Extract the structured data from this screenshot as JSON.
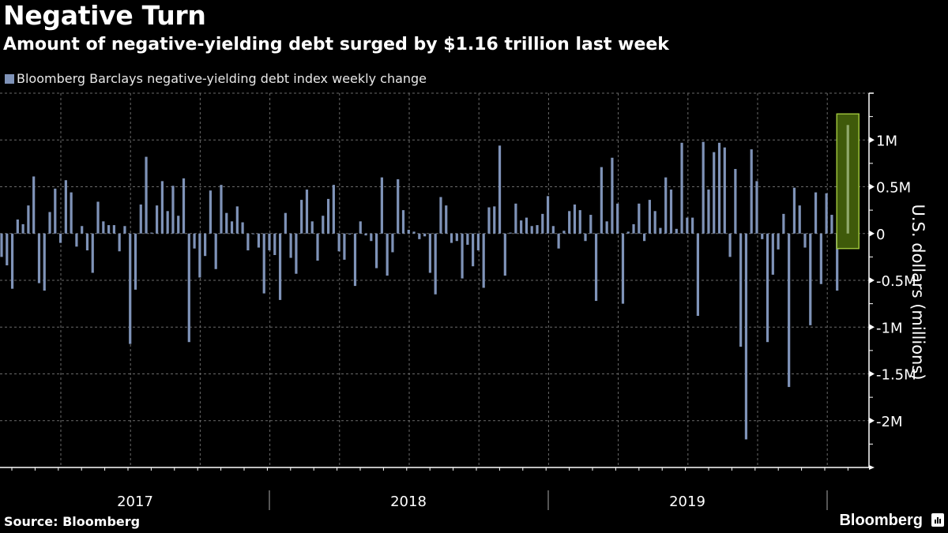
{
  "header": {
    "title": "Negative Turn",
    "subtitle": "Amount of negative-yielding debt surged by $1.16 trillion last week"
  },
  "footer": {
    "source": "Source: Bloomberg",
    "brand": "Bloomberg",
    "brand_icon": "bloomberg-chart-icon"
  },
  "colors": {
    "background": "#000000",
    "bar": "#7f93b8",
    "highlight_fill": "#3f5a0a",
    "highlight_stroke": "#9bc13a",
    "highlight_bar": "#8fa86b"
  },
  "chart_data": {
    "type": "bar",
    "title": "Negative Turn",
    "subtitle": "Amount of negative-yielding debt surged by $1.16 trillion last week",
    "legend": [
      "Bloomberg Barclays negative-yielding debt index weekly change"
    ],
    "legend_position": "top-left",
    "xlabel": "",
    "ylabel": "U.S. dollars (millions)",
    "y_axis_side": "right",
    "ylim": [
      -2.5,
      1.5
    ],
    "yticks": [
      {
        "value": 1,
        "label": "1M"
      },
      {
        "value": 0.5,
        "label": "0.5M"
      },
      {
        "value": 0,
        "label": "0"
      },
      {
        "value": -0.5,
        "label": "-0.5M"
      },
      {
        "value": -1,
        "label": "-1M"
      },
      {
        "value": -1.5,
        "label": "-1.5M"
      },
      {
        "value": -2,
        "label": "-2M"
      }
    ],
    "x_year_labels": [
      "2017",
      "2018",
      "2019"
    ],
    "grid": true,
    "frequency": "weekly",
    "highlight_last": true,
    "highlight_value": 1.16,
    "series": [
      {
        "name": "Bloomberg Barclays negative-yielding debt index weekly change",
        "values": [
          -0.25,
          -0.34,
          -0.59,
          0.15,
          0.1,
          0.3,
          0.61,
          -0.53,
          -0.61,
          0.23,
          0.48,
          -0.1,
          0.57,
          0.44,
          -0.14,
          0.08,
          -0.18,
          -0.42,
          0.34,
          0.13,
          0.09,
          0.09,
          -0.19,
          0.08,
          -1.18,
          -0.6,
          0.31,
          0.82,
          0.01,
          0.3,
          0.56,
          0.24,
          0.51,
          0.19,
          0.59,
          -1.16,
          -0.16,
          -0.47,
          -0.24,
          0.46,
          -0.38,
          0.52,
          0.22,
          0.13,
          0.29,
          0.12,
          -0.18,
          0.0,
          -0.15,
          -0.64,
          -0.18,
          -0.23,
          -0.71,
          0.22,
          -0.26,
          -0.43,
          0.36,
          0.47,
          0.13,
          -0.29,
          0.19,
          0.37,
          0.52,
          -0.19,
          -0.28,
          -0.01,
          -0.56,
          0.13,
          -0.02,
          -0.08,
          -0.37,
          0.6,
          -0.45,
          -0.2,
          0.58,
          0.25,
          0.04,
          0.02,
          -0.06,
          -0.03,
          -0.42,
          -0.65,
          0.39,
          0.3,
          -0.1,
          -0.08,
          -0.48,
          -0.12,
          -0.35,
          -0.18,
          -0.58,
          0.28,
          0.29,
          0.94,
          -0.45,
          0.01,
          0.32,
          0.14,
          0.17,
          0.08,
          0.09,
          0.21,
          0.4,
          0.08,
          -0.16,
          0.03,
          0.24,
          0.31,
          0.25,
          -0.08,
          0.2,
          -0.72,
          0.71,
          0.13,
          0.81,
          0.32,
          -0.75,
          0.02,
          0.1,
          0.32,
          -0.08,
          0.36,
          0.24,
          0.06,
          0.6,
          0.47,
          0.05,
          0.97,
          0.17,
          0.17,
          -0.88,
          0.98,
          0.47,
          0.87,
          0.97,
          0.92,
          -0.25,
          0.69,
          -1.21,
          -2.2,
          0.9,
          0.56,
          -0.06,
          -1.16,
          -0.44,
          -0.17,
          0.21,
          -1.64,
          0.49,
          0.3,
          -0.15,
          -0.98,
          0.44,
          -0.54,
          0.43,
          0.2,
          -0.61,
          0.01,
          1.16
        ]
      }
    ]
  }
}
